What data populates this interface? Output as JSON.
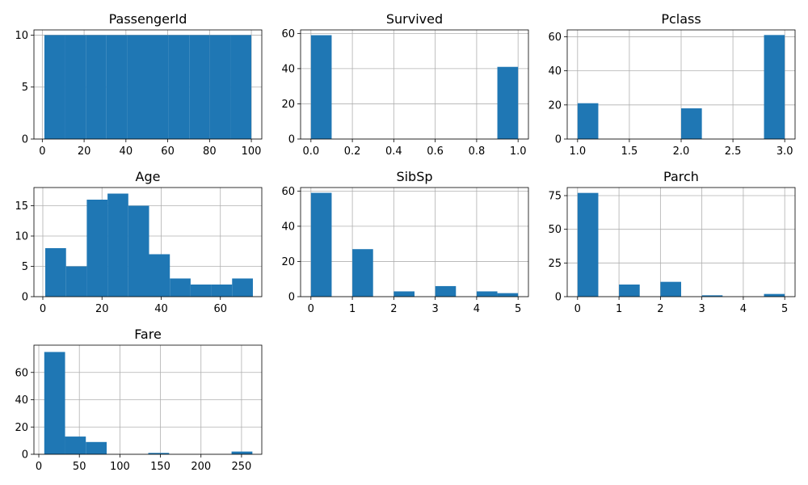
{
  "chart_data": [
    {
      "type": "bar",
      "title": "PassengerId",
      "xlim": [
        -4,
        105
      ],
      "ylim": [
        0,
        10.5
      ],
      "bin_edges": [
        1,
        10.9,
        20.8,
        30.7,
        40.6,
        50.5,
        60.4,
        70.3,
        80.2,
        90.1,
        100
      ],
      "values": [
        10,
        10,
        10,
        10,
        10,
        10,
        10,
        10,
        10,
        10
      ],
      "xticks": [
        0,
        20,
        40,
        60,
        80,
        100
      ],
      "xtick_labels": [
        "0",
        "20",
        "40",
        "60",
        "80",
        "100"
      ],
      "yticks": [
        0,
        5,
        10
      ],
      "ytick_labels": [
        "0",
        "5",
        "10"
      ],
      "grid": true,
      "color": "#1f77b4"
    },
    {
      "type": "bar",
      "title": "Survived",
      "xlim": [
        -0.05,
        1.05
      ],
      "ylim": [
        0,
        62
      ],
      "bin_edges": [
        0,
        0.1,
        0.2,
        0.3,
        0.4,
        0.5,
        0.6,
        0.7,
        0.8,
        0.9,
        1.0
      ],
      "values": [
        59,
        0,
        0,
        0,
        0,
        0,
        0,
        0,
        0,
        41
      ],
      "xticks": [
        0,
        0.2,
        0.4,
        0.6,
        0.8,
        1.0
      ],
      "xtick_labels": [
        "0.0",
        "0.2",
        "0.4",
        "0.6",
        "0.8",
        "1.0"
      ],
      "yticks": [
        0,
        20,
        40,
        60
      ],
      "ytick_labels": [
        "0",
        "20",
        "40",
        "60"
      ],
      "grid": true,
      "color": "#1f77b4"
    },
    {
      "type": "bar",
      "title": "Pclass",
      "xlim": [
        0.9,
        3.1
      ],
      "ylim": [
        0,
        64
      ],
      "bin_edges": [
        1.0,
        1.2,
        1.4,
        1.6,
        1.8,
        2.0,
        2.2,
        2.4,
        2.6,
        2.8,
        3.0
      ],
      "values": [
        21,
        0,
        0,
        0,
        0,
        18,
        0,
        0,
        0,
        61
      ],
      "xticks": [
        1.0,
        1.5,
        2.0,
        2.5,
        3.0
      ],
      "xtick_labels": [
        "1.0",
        "1.5",
        "2.0",
        "2.5",
        "3.0"
      ],
      "yticks": [
        0,
        20,
        40,
        60
      ],
      "ytick_labels": [
        "0",
        "20",
        "40",
        "60"
      ],
      "grid": true,
      "color": "#1f77b4"
    },
    {
      "type": "bar",
      "title": "Age",
      "xlim": [
        -3,
        74
      ],
      "ylim": [
        0,
        18
      ],
      "bin_edges": [
        0.83,
        7.85,
        14.86,
        21.88,
        28.89,
        35.91,
        42.93,
        49.94,
        56.96,
        63.97,
        70.99
      ],
      "values": [
        8,
        5,
        16,
        17,
        15,
        7,
        3,
        2,
        2,
        3
      ],
      "xticks": [
        0,
        20,
        40,
        60
      ],
      "xtick_labels": [
        "0",
        "20",
        "40",
        "60"
      ],
      "yticks": [
        0,
        5,
        10,
        15
      ],
      "ytick_labels": [
        "0",
        "5",
        "10",
        "15"
      ],
      "grid": true,
      "color": "#1f77b4"
    },
    {
      "type": "bar",
      "title": "SibSp",
      "xlim": [
        -0.25,
        5.25
      ],
      "ylim": [
        0,
        62
      ],
      "bin_edges": [
        0,
        0.5,
        1.0,
        1.5,
        2.0,
        2.5,
        3.0,
        3.5,
        4.0,
        4.5,
        5.0
      ],
      "values": [
        59,
        0,
        27,
        0,
        3,
        0,
        6,
        0,
        3,
        2
      ],
      "xticks": [
        0,
        1,
        2,
        3,
        4,
        5
      ],
      "xtick_labels": [
        "0",
        "1",
        "2",
        "3",
        "4",
        "5"
      ],
      "yticks": [
        0,
        20,
        40,
        60
      ],
      "ytick_labels": [
        "0",
        "20",
        "40",
        "60"
      ],
      "grid": true,
      "color": "#1f77b4"
    },
    {
      "type": "bar",
      "title": "Parch",
      "xlim": [
        -0.25,
        5.25
      ],
      "ylim": [
        0,
        81
      ],
      "bin_edges": [
        0,
        0.5,
        1.0,
        1.5,
        2.0,
        2.5,
        3.0,
        3.5,
        4.0,
        4.5,
        5.0
      ],
      "values": [
        77,
        0,
        9,
        0,
        11,
        0,
        1,
        0,
        0,
        2
      ],
      "xticks": [
        0,
        1,
        2,
        3,
        4,
        5
      ],
      "xtick_labels": [
        "0",
        "1",
        "2",
        "3",
        "4",
        "5"
      ],
      "yticks": [
        0,
        25,
        50,
        75
      ],
      "ytick_labels": [
        "0",
        "25",
        "50",
        "75"
      ],
      "grid": true,
      "color": "#1f77b4"
    },
    {
      "type": "bar",
      "title": "Fare",
      "xlim": [
        -6,
        275
      ],
      "ylim": [
        0,
        80
      ],
      "bin_edges": [
        6.75,
        32.4,
        58.0,
        83.7,
        109.4,
        135.0,
        160.7,
        186.4,
        212.0,
        237.7,
        263.4
      ],
      "values": [
        75,
        13,
        9,
        0,
        0,
        1,
        0,
        0,
        0,
        2
      ],
      "xticks": [
        0,
        50,
        100,
        150,
        200,
        250
      ],
      "xtick_labels": [
        "0",
        "50",
        "100",
        "150",
        "200",
        "250"
      ],
      "yticks": [
        0,
        20,
        40,
        60
      ],
      "ytick_labels": [
        "0",
        "20",
        "40",
        "60"
      ],
      "grid": true,
      "color": "#1f77b4"
    }
  ]
}
